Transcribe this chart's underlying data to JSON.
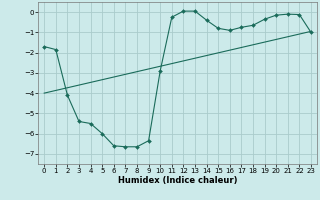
{
  "xlabel": "Humidex (Indice chaleur)",
  "background_color": "#cceaea",
  "grid_color": "#aacccc",
  "line_color": "#1a6b5a",
  "xlim": [
    -0.5,
    23.5
  ],
  "ylim": [
    -7.5,
    0.5
  ],
  "yticks": [
    0,
    -1,
    -2,
    -3,
    -4,
    -5,
    -6,
    -7
  ],
  "xticks": [
    0,
    1,
    2,
    3,
    4,
    5,
    6,
    7,
    8,
    9,
    10,
    11,
    12,
    13,
    14,
    15,
    16,
    17,
    18,
    19,
    20,
    21,
    22,
    23
  ],
  "line1_x": [
    0,
    1,
    2,
    3,
    4,
    5,
    6,
    7,
    8,
    9,
    10,
    11,
    12,
    13,
    14,
    15,
    16,
    17,
    18,
    19,
    20,
    21,
    22,
    23
  ],
  "line1_y": [
    -1.7,
    -1.85,
    -4.1,
    -5.4,
    -5.5,
    -6.0,
    -6.6,
    -6.65,
    -6.65,
    -6.35,
    -2.9,
    -0.25,
    0.05,
    0.05,
    -0.4,
    -0.8,
    -0.9,
    -0.75,
    -0.65,
    -0.35,
    -0.15,
    -0.1,
    -0.12,
    -1.0
  ],
  "line2_x": [
    0,
    23
  ],
  "line2_y": [
    -4.0,
    -0.95
  ],
  "tick_fontsize": 5.0,
  "xlabel_fontsize": 6.0
}
